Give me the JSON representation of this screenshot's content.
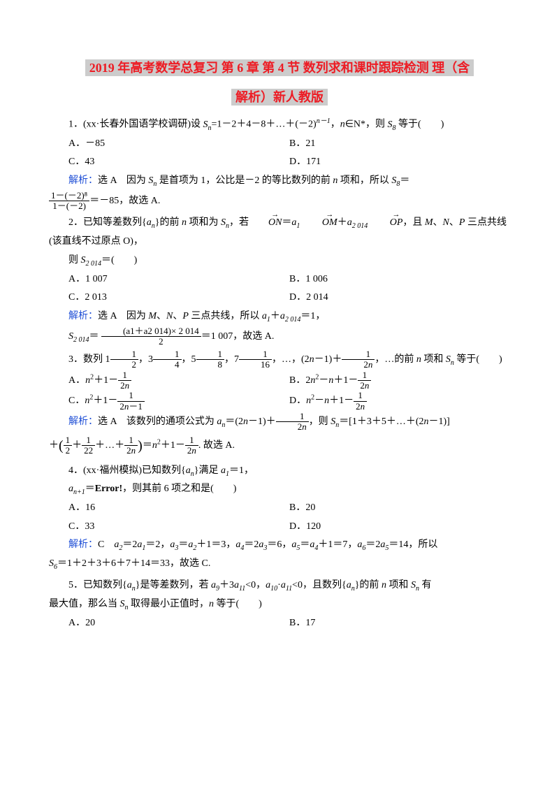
{
  "title_line1": "2019 年高考数学总复习 第 6 章 第 4 节 数列求和课时跟踪检测 理（含",
  "title_line2": "解析）新人教版",
  "q1": {
    "stem_a": "1．(xx·长春外国语学校调研)设 ",
    "stem_b": "=1－2＋4－8＋…＋(－2)",
    "stem_c": "，",
    "stem_d": "∈N*，则 ",
    "stem_e": " 等于(　　)",
    "A": "A．－85",
    "B": "B．21",
    "C": "C．43",
    "D": "D．171",
    "ans_label": "解析：",
    "ans_a": "选 A　因为 ",
    "ans_b": " 是首项为 1，公比是－2 的等比数列的前 ",
    "ans_c": " 项和，所以 ",
    "ans_d": "＝",
    "frac_num": "1－(－2)⁸",
    "frac_den": "1－(－2)",
    "ans_e": "＝－85，故选 A."
  },
  "q2": {
    "stem_a": "2．已知等差数列{",
    "stem_b": "}的前 ",
    "stem_c": " 项和为 ",
    "stem_d": "，若",
    "stem_e": "＝",
    "stem_f": "＋",
    "stem_g": "，且 ",
    "stem_h": "、",
    "stem_i": "、",
    "stem_j": " 三点共线",
    "line2": "(该直线不过原点 O)，",
    "line3a": "则 ",
    "line3b": "＝(　　)",
    "A": "A．1 007",
    "B": "B．1 006",
    "C": "C．2 013",
    "D": "D．2 014",
    "ans_label": "解析：",
    "ans_a": "选 A　因为 ",
    "ans_b": "、",
    "ans_c": "、",
    "ans_d": " 三点共线，所以 ",
    "ans_e": "＋",
    "ans_f": "＝1，",
    "s2014": "S",
    "frac_num": "(a1＋a2 014)× 2 014",
    "frac_den": "2",
    "ans_g": "＝1 007，故选 A."
  },
  "q3": {
    "stem_a": "3．数列 1",
    "stem_b": "，3",
    "stem_c": "，5",
    "stem_d": "，7",
    "stem_e": "，…，(2",
    "stem_f": "－1)＋",
    "stem_g": "，…的前 ",
    "stem_h": " 项和 ",
    "stem_i": " 等于(　　)",
    "A_a": "A．",
    "A_b": "＋1－",
    "B_a": "B．2",
    "B_b": "－",
    "B_c": "＋1－",
    "C_a": "C．",
    "C_b": "＋1－",
    "D_a": "D．",
    "D_b": "－",
    "D_c": "＋1－",
    "ans_label": "解析：",
    "ans_a": "选 A　该数列的通项公式为 ",
    "ans_b": "＝(2",
    "ans_c": "－1)＋",
    "ans_d": "，则 ",
    "ans_e": "＝[1＋3＋5＋…＋(2",
    "ans_f": "－1)]",
    "ans_g": "＋",
    "ans_h": "＝",
    "ans_i": "＋1－",
    "ans_j": ". 故选 A."
  },
  "q4": {
    "stem_a": "4．(xx·福州模拟)已知数列{",
    "stem_b": "}满足 ",
    "stem_c": "＝1，",
    "line2a": "＝",
    "line2b": "Error!",
    "line2c": "，则其前 6 项之和是(　　)",
    "A": "A．16",
    "B": "B．20",
    "C": "C．33",
    "D": "D．120",
    "ans_label": "解析：",
    "ans_a": "C　",
    "ans_b": "＝2",
    "ans_c": "＝2，",
    "ans_d": "＝",
    "ans_e": "＋1＝3，",
    "ans_f": "＝2",
    "ans_g": "＝6，",
    "ans_h": "＝",
    "ans_i": "＋1＝7，",
    "ans_j": "＝2",
    "ans_k": "＝14，所以",
    "ans_l": "＝1＋2＋3＋6＋7＋14＝33，故选 C."
  },
  "q5": {
    "stem_a": "5．已知数列{",
    "stem_b": "}是等差数列，若 ",
    "stem_c": "＋3",
    "stem_d": "<0，",
    "stem_e": "·",
    "stem_f": "<0，且数列{",
    "stem_g": "}的前 ",
    "stem_h": " 项和 ",
    "stem_i": " 有",
    "line2a": "最大值，那么当 ",
    "line2b": " 取得最小正值时，",
    "line2c": " 等于(　　)",
    "A": "A．20",
    "B": "B．17"
  },
  "colors": {
    "title_highlight": "#cccccc",
    "title_text": "#ed1c24",
    "answer_label": "#1f4fd6",
    "body_text": "#000000",
    "background": "#ffffff"
  }
}
